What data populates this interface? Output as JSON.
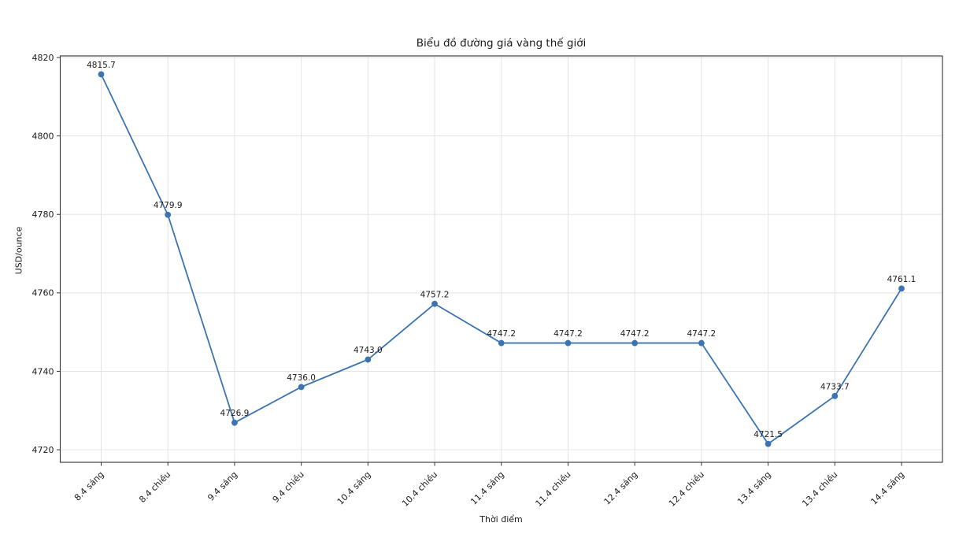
{
  "figure": {
    "background": "#ffffff"
  },
  "chart_data": {
    "type": "line",
    "title": "Biểu đồ đường giá vàng thế giới",
    "xlabel": "Thời điểm",
    "ylabel": "USD/ounce",
    "categories": [
      "8.4 sáng",
      "8.4 chiều",
      "9.4 sáng",
      "9.4 chiều",
      "10.4 sáng",
      "10.4 chiều",
      "11.4 sáng",
      "11.4 chiều",
      "12.4 sáng",
      "12.4 chiều",
      "13.4 sáng",
      "13.4 chiều",
      "14.4 sáng"
    ],
    "values": [
      4815.7,
      4779.9,
      4726.9,
      4736.0,
      4743.0,
      4757.2,
      4747.2,
      4747.2,
      4747.2,
      4747.2,
      4721.5,
      4733.7,
      4761.1
    ],
    "point_labels": [
      "4815.7",
      "4779.9",
      "4726.9",
      "4736.0",
      "4743.0",
      "4757.2",
      "4747.2",
      "4747.2",
      "4747.2",
      "4747.2",
      "4721.5",
      "4733.7",
      "4761.1"
    ],
    "yticks": [
      4720,
      4740,
      4760,
      4780,
      4800,
      4820
    ],
    "ylim": [
      4716.8,
      4820.4
    ],
    "grid": true,
    "legend": "none",
    "xtick_rotation": 45,
    "line_color": "#3b74b0",
    "marker_color": "#3b74b0",
    "grid_color": "#e0e0e0",
    "spine_color": "#333333",
    "text_color": "#1a1a1a"
  }
}
